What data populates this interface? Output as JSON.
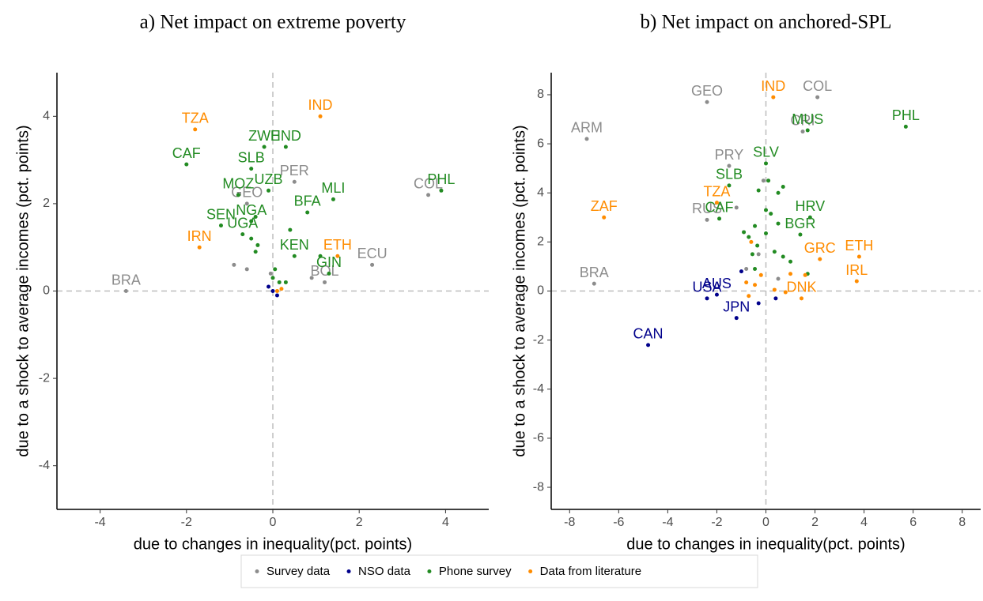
{
  "legend": [
    {
      "name": "Survey data",
      "color": "#8c8c8c"
    },
    {
      "name": "NSO data",
      "color": "#00008b"
    },
    {
      "name": "Phone survey",
      "color": "#228b22"
    },
    {
      "name": "Data from literature",
      "color": "#ff8c00"
    }
  ],
  "chart_data": [
    {
      "type": "scatter",
      "title": "a) Net impact on extreme poverty",
      "x_label": "due to changes in inequality(pct. points)",
      "y_label": "due to a shock to average incomes (pct. points)",
      "xlim": [
        -5,
        5
      ],
      "ylim": [
        -5,
        5
      ],
      "xticks": [
        -4,
        -2,
        0,
        2,
        4
      ],
      "yticks": [
        -4,
        -2,
        0,
        2,
        4
      ],
      "reference_lines": {
        "x": 0,
        "y": 0
      },
      "series": [
        {
          "x": [
            -3.4,
            -0.6,
            0.5,
            3.6,
            2.3,
            1.2,
            -0.9,
            -0.6,
            0.9,
            -0.05
          ],
          "values": [
            0,
            2.0,
            2.5,
            2.2,
            0.6,
            0.2,
            0.6,
            0.5,
            0.3,
            0.4
          ],
          "labels": [
            "BRA",
            "GEO",
            "PER",
            "COL",
            "ECU",
            "BOL",
            null,
            null,
            null,
            null
          ]
        },
        {
          "x": [
            -0.1,
            0.1,
            0
          ],
          "values": [
            0.1,
            -0.1,
            0
          ],
          "labels": [
            null,
            null,
            null
          ]
        },
        {
          "x": [
            -0.2,
            0.3,
            -2.0,
            -0.5,
            -0.8,
            -0.1,
            1.4,
            3.9,
            -0.5,
            0.8,
            -1.2,
            -0.7,
            0.5,
            1.3,
            -0.4,
            -0.5,
            -0.4,
            -0.35,
            0.4,
            1.1,
            0.05,
            0.15,
            0.3,
            0
          ],
          "values": [
            3.3,
            3.3,
            2.9,
            2.8,
            2.2,
            2.3,
            2.1,
            2.3,
            1.6,
            1.8,
            1.5,
            1.3,
            0.8,
            0.4,
            1.7,
            1.2,
            0.9,
            1.05,
            1.4,
            0.8,
            0.5,
            0.2,
            0.2,
            0.3
          ],
          "labels": [
            "ZWE",
            "HND",
            "CAF",
            "SLB",
            "MOZ",
            "UZB",
            "MLI",
            "PHL",
            "NGA",
            "BFA",
            "SEN",
            "UGA",
            "KEN",
            "GIN",
            null,
            null,
            null,
            null,
            null,
            null,
            null,
            null,
            null,
            null
          ]
        },
        {
          "x": [
            1.1,
            -1.8,
            -1.7,
            1.5,
            0.1,
            0.2
          ],
          "values": [
            4.0,
            3.7,
            1.0,
            0.8,
            0,
            0.05
          ],
          "labels": [
            "IND",
            "TZA",
            "IRN",
            "ETH",
            null,
            null
          ]
        }
      ]
    },
    {
      "type": "scatter",
      "title": "b) Net impact on anchored-SPL",
      "x_label": "due to changes in inequality(pct. points)",
      "y_label": "due to a shock to average incomes (pct. points)",
      "xlim": [
        -8.75,
        8.75
      ],
      "ylim": [
        -8.9,
        8.9
      ],
      "xticks": [
        -8,
        -6,
        -4,
        -2,
        0,
        2,
        4,
        6,
        8
      ],
      "yticks": [
        -8,
        -6,
        -4,
        -2,
        0,
        2,
        4,
        6,
        8
      ],
      "reference_lines": {
        "x": 0,
        "y": 0
      },
      "series": [
        {
          "x": [
            -2.4,
            2.1,
            -7.3,
            1.5,
            -1.5,
            -2.4,
            -7.0,
            -1.2,
            -0.8,
            -0.1,
            -0.3,
            0.5
          ],
          "values": [
            7.7,
            7.9,
            6.2,
            6.5,
            5.1,
            2.9,
            0.3,
            3.4,
            0.9,
            4.5,
            1.5,
            0.5
          ],
          "labels": [
            "GEO",
            "COL",
            "ARM",
            "CRI",
            "PRY",
            "RUS",
            "BRA",
            null,
            null,
            null,
            null,
            null
          ]
        },
        {
          "x": [
            -4.8,
            -1.2,
            -2.4,
            -2.0,
            -1.0,
            -0.3,
            0.4
          ],
          "values": [
            -2.2,
            -1.1,
            -0.3,
            -0.15,
            0.8,
            -0.5,
            -0.3
          ],
          "labels": [
            "CAN",
            "JPN",
            "USA",
            "AUS",
            null,
            null,
            null
          ]
        },
        {
          "x": [
            1.7,
            5.7,
            0,
            -1.5,
            -1.9,
            1.8,
            1.4,
            -0.3,
            0.7,
            0.5,
            0.1,
            -0.9,
            0,
            0.2,
            0.5,
            -0.45,
            -0.7,
            -0.35,
            0,
            0.35,
            0.7,
            1.0,
            -0.45,
            1.7,
            -0.55
          ],
          "values": [
            6.55,
            6.7,
            5.2,
            4.3,
            2.95,
            3.0,
            2.3,
            4.1,
            4.25,
            4.0,
            4.5,
            2.4,
            3.3,
            3.15,
            2.75,
            2.65,
            2.2,
            1.85,
            2.35,
            1.6,
            1.4,
            1.2,
            0.9,
            0.7,
            1.5
          ],
          "labels": [
            "MUS",
            "PHL",
            "SLV",
            "SLB",
            "CAF",
            "HRV",
            "BGR",
            null,
            null,
            null,
            null,
            null,
            null,
            null,
            null,
            null,
            null,
            null,
            null,
            null,
            null,
            null,
            null,
            null,
            null
          ]
        },
        {
          "x": [
            0.3,
            -2.0,
            -6.6,
            3.8,
            2.2,
            3.7,
            1.45,
            -0.6,
            -0.2,
            -0.8,
            1.0,
            1.6,
            -0.7,
            0.35,
            0.8,
            -0.45
          ],
          "values": [
            7.9,
            3.6,
            3.0,
            1.4,
            1.3,
            0.4,
            -0.3,
            2.0,
            0.65,
            0.35,
            0.7,
            0.65,
            -0.2,
            0.05,
            -0.05,
            0.25
          ],
          "labels": [
            "IND",
            "TZA",
            "ZAF",
            "ETH",
            "GRC",
            "IRL",
            "DNK",
            null,
            null,
            null,
            null,
            null,
            null,
            null,
            null,
            null
          ]
        }
      ]
    }
  ]
}
